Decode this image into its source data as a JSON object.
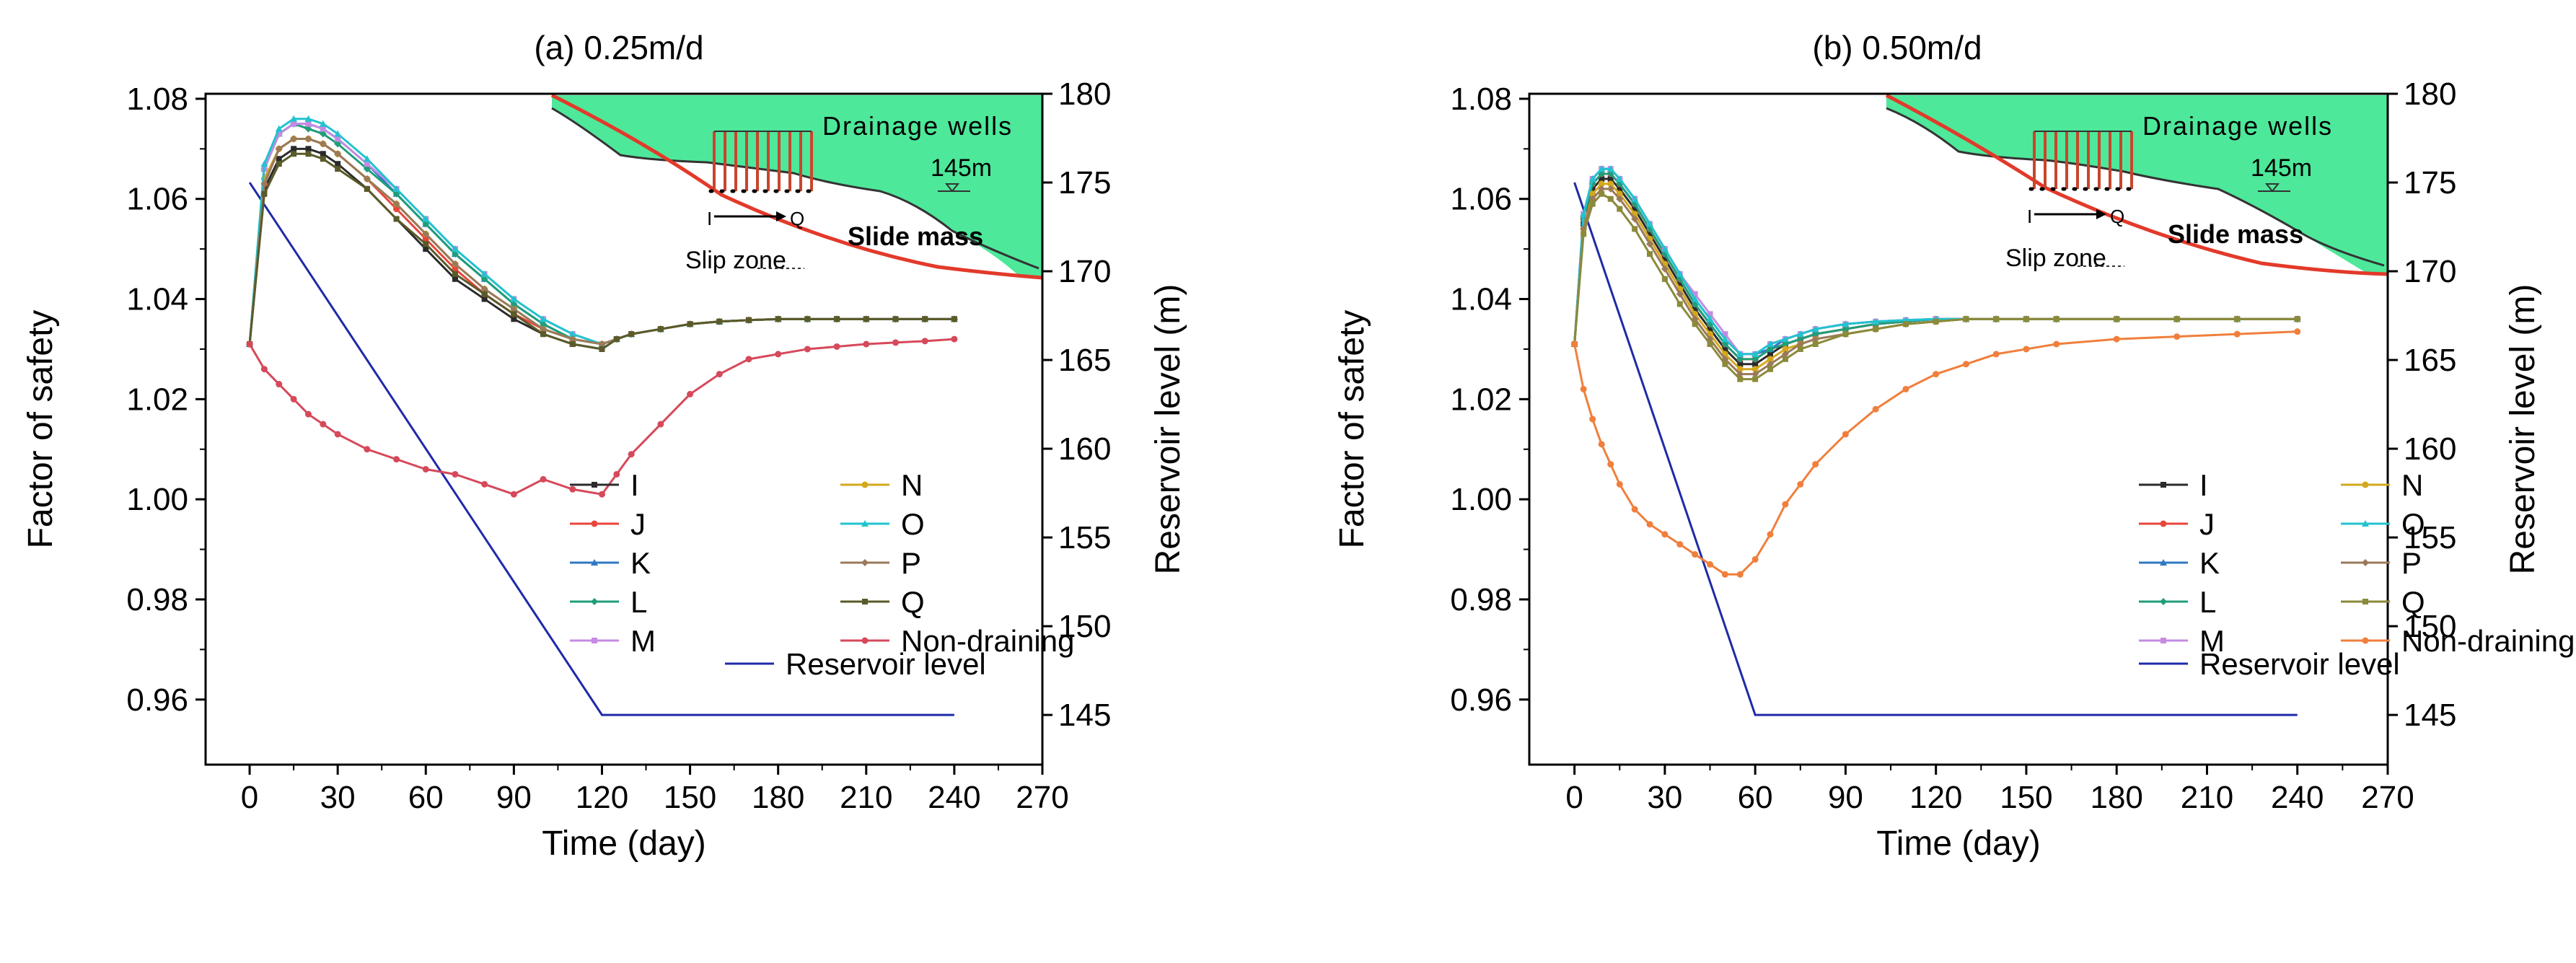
{
  "chart_data": [
    {
      "type": "line",
      "title": "(a) 0.25m/d",
      "xlabel": "Time (day)",
      "ylabel": "Factor of safety",
      "y2label": "Reservoir level (m)",
      "xlim": [
        -15,
        270
      ],
      "ylim": [
        0.947,
        1.081
      ],
      "y2lim": [
        142.2,
        180
      ],
      "xticks": [
        0,
        30,
        60,
        90,
        120,
        150,
        180,
        210,
        240,
        270
      ],
      "yticks": [
        0.96,
        0.98,
        1.0,
        1.02,
        1.04,
        1.06,
        1.08
      ],
      "y2ticks": [
        145,
        150,
        155,
        160,
        165,
        170,
        175,
        180
      ],
      "x": [
        0,
        5,
        10,
        15,
        20,
        25,
        30,
        40,
        50,
        60,
        70,
        80,
        90,
        100,
        110,
        120,
        125,
        130,
        140,
        150,
        160,
        170,
        180,
        190,
        200,
        210,
        220,
        230,
        240
      ],
      "series": [
        {
          "name": "I",
          "color": "#2b2b2b",
          "values": [
            1.031,
            1.062,
            1.068,
            1.07,
            1.07,
            1.069,
            1.067,
            1.062,
            1.056,
            1.05,
            1.044,
            1.04,
            1.036,
            1.033,
            1.031,
            1.03,
            1.032,
            1.033,
            1.034,
            1.035,
            1.0355,
            1.0358,
            1.036,
            1.036,
            1.036,
            1.036,
            1.036,
            1.036,
            1.036
          ]
        },
        {
          "name": "J",
          "color": "#e8453c",
          "values": [
            1.031,
            1.063,
            1.07,
            1.072,
            1.072,
            1.071,
            1.069,
            1.064,
            1.058,
            1.052,
            1.046,
            1.041,
            1.037,
            1.034,
            1.032,
            1.031,
            1.032,
            1.033,
            1.034,
            1.035,
            1.0355,
            1.0358,
            1.036,
            1.036,
            1.036,
            1.036,
            1.036,
            1.036,
            1.036
          ]
        },
        {
          "name": "K",
          "color": "#2f78c4",
          "values": [
            1.031,
            1.066,
            1.073,
            1.075,
            1.075,
            1.074,
            1.072,
            1.067,
            1.061,
            1.055,
            1.049,
            1.044,
            1.039,
            1.035,
            1.032,
            1.031,
            1.032,
            1.033,
            1.034,
            1.035,
            1.0355,
            1.0358,
            1.036,
            1.036,
            1.036,
            1.036,
            1.036,
            1.036,
            1.036
          ]
        },
        {
          "name": "L",
          "color": "#1f9e7a",
          "values": [
            1.031,
            1.066,
            1.073,
            1.075,
            1.074,
            1.073,
            1.071,
            1.066,
            1.061,
            1.055,
            1.049,
            1.044,
            1.039,
            1.035,
            1.032,
            1.031,
            1.032,
            1.033,
            1.034,
            1.035,
            1.0355,
            1.0358,
            1.036,
            1.036,
            1.036,
            1.036,
            1.036,
            1.036,
            1.036
          ]
        },
        {
          "name": "M",
          "color": "#c58be3",
          "values": [
            1.031,
            1.066,
            1.073,
            1.075,
            1.075,
            1.074,
            1.072,
            1.067,
            1.062,
            1.056,
            1.05,
            1.045,
            1.04,
            1.036,
            1.033,
            1.031,
            1.032,
            1.033,
            1.034,
            1.035,
            1.0355,
            1.0358,
            1.036,
            1.036,
            1.036,
            1.036,
            1.036,
            1.036,
            1.036
          ]
        },
        {
          "name": "N",
          "color": "#d4a81c",
          "values": [
            1.031,
            1.064,
            1.07,
            1.072,
            1.072,
            1.071,
            1.069,
            1.064,
            1.059,
            1.053,
            1.047,
            1.042,
            1.038,
            1.034,
            1.032,
            1.031,
            1.032,
            1.033,
            1.034,
            1.035,
            1.0355,
            1.0358,
            1.036,
            1.036,
            1.036,
            1.036,
            1.036,
            1.036,
            1.036
          ]
        },
        {
          "name": "O",
          "color": "#22c3cf",
          "values": [
            1.031,
            1.067,
            1.074,
            1.076,
            1.076,
            1.075,
            1.073,
            1.068,
            1.062,
            1.056,
            1.05,
            1.045,
            1.04,
            1.036,
            1.033,
            1.031,
            1.032,
            1.033,
            1.034,
            1.035,
            1.0355,
            1.0358,
            1.036,
            1.036,
            1.036,
            1.036,
            1.036,
            1.036,
            1.036
          ]
        },
        {
          "name": "P",
          "color": "#9a7a5a",
          "values": [
            1.031,
            1.063,
            1.07,
            1.072,
            1.072,
            1.071,
            1.069,
            1.064,
            1.059,
            1.053,
            1.047,
            1.042,
            1.038,
            1.034,
            1.032,
            1.031,
            1.032,
            1.033,
            1.034,
            1.035,
            1.0355,
            1.0358,
            1.036,
            1.036,
            1.036,
            1.036,
            1.036,
            1.036,
            1.036
          ]
        },
        {
          "name": "Q",
          "color": "#5a5a2a",
          "values": [
            1.031,
            1.061,
            1.067,
            1.069,
            1.069,
            1.068,
            1.066,
            1.062,
            1.056,
            1.051,
            1.045,
            1.041,
            1.037,
            1.033,
            1.031,
            1.03,
            1.032,
            1.033,
            1.034,
            1.035,
            1.0355,
            1.0358,
            1.036,
            1.036,
            1.036,
            1.036,
            1.036,
            1.036,
            1.036
          ]
        },
        {
          "name": "Non-draining",
          "color": "#d6495b",
          "values": [
            1.031,
            1.026,
            1.023,
            1.02,
            1.017,
            1.015,
            1.013,
            1.01,
            1.008,
            1.006,
            1.005,
            1.003,
            1.001,
            1.004,
            1.002,
            1.001,
            1.005,
            1.009,
            1.015,
            1.021,
            1.025,
            1.028,
            1.029,
            1.03,
            1.0305,
            1.031,
            1.0313,
            1.0316,
            1.032
          ]
        }
      ],
      "reservoir": {
        "name": "Reservoir level",
        "color": "#1f2aa8",
        "x": [
          0,
          120,
          240
        ],
        "values": [
          175,
          145,
          145
        ]
      },
      "legend": [
        "I",
        "J",
        "K",
        "L",
        "M",
        "N",
        "O",
        "P",
        "Q",
        "Non-draining",
        "Reservoir level"
      ],
      "inset": {
        "wells_label": "Drainage wells",
        "level_label": "145m",
        "slide_label": "Slide mass",
        "slip_label": "Slip zone",
        "start_marker": "I",
        "end_marker": "Q"
      }
    },
    {
      "type": "line",
      "title": "(b) 0.50m/d",
      "xlabel": "Time (day)",
      "ylabel": "Factor of safety",
      "y2label": "Reservoir level (m)",
      "xlim": [
        -15,
        270
      ],
      "ylim": [
        0.947,
        1.081
      ],
      "y2lim": [
        142.2,
        180
      ],
      "xticks": [
        0,
        30,
        60,
        90,
        120,
        150,
        180,
        210,
        240,
        270
      ],
      "yticks": [
        0.96,
        0.98,
        1.0,
        1.02,
        1.04,
        1.06,
        1.08
      ],
      "y2ticks": [
        145,
        150,
        155,
        160,
        165,
        170,
        175,
        180
      ],
      "x": [
        0,
        3,
        6,
        9,
        12,
        15,
        20,
        25,
        30,
        35,
        40,
        45,
        50,
        55,
        60,
        65,
        70,
        75,
        80,
        90,
        100,
        110,
        120,
        130,
        140,
        150,
        160,
        180,
        200,
        220,
        240
      ],
      "series": [
        {
          "name": "I",
          "color": "#2b2b2b",
          "values": [
            1.031,
            1.055,
            1.062,
            1.064,
            1.064,
            1.062,
            1.058,
            1.053,
            1.048,
            1.043,
            1.038,
            1.034,
            1.03,
            1.027,
            1.027,
            1.029,
            1.031,
            1.032,
            1.033,
            1.034,
            1.035,
            1.0355,
            1.036,
            1.036,
            1.036,
            1.036,
            1.036,
            1.036,
            1.036,
            1.036,
            1.036
          ]
        },
        {
          "name": "J",
          "color": "#e8453c",
          "values": [
            1.031,
            1.056,
            1.063,
            1.065,
            1.065,
            1.063,
            1.059,
            1.054,
            1.049,
            1.044,
            1.039,
            1.035,
            1.031,
            1.028,
            1.028,
            1.03,
            1.031,
            1.032,
            1.033,
            1.034,
            1.035,
            1.0355,
            1.036,
            1.036,
            1.036,
            1.036,
            1.036,
            1.036,
            1.036,
            1.036,
            1.036
          ]
        },
        {
          "name": "K",
          "color": "#2f78c4",
          "values": [
            1.031,
            1.057,
            1.064,
            1.066,
            1.066,
            1.064,
            1.06,
            1.055,
            1.05,
            1.045,
            1.04,
            1.036,
            1.032,
            1.029,
            1.029,
            1.03,
            1.032,
            1.033,
            1.034,
            1.035,
            1.0355,
            1.0358,
            1.036,
            1.036,
            1.036,
            1.036,
            1.036,
            1.036,
            1.036,
            1.036,
            1.036
          ]
        },
        {
          "name": "L",
          "color": "#1f9e7a",
          "values": [
            1.031,
            1.056,
            1.063,
            1.065,
            1.065,
            1.063,
            1.059,
            1.054,
            1.049,
            1.044,
            1.039,
            1.035,
            1.031,
            1.028,
            1.028,
            1.03,
            1.031,
            1.032,
            1.033,
            1.034,
            1.035,
            1.0355,
            1.036,
            1.036,
            1.036,
            1.036,
            1.036,
            1.036,
            1.036,
            1.036,
            1.036
          ]
        },
        {
          "name": "M",
          "color": "#c58be3",
          "values": [
            1.031,
            1.057,
            1.064,
            1.066,
            1.066,
            1.064,
            1.06,
            1.055,
            1.05,
            1.045,
            1.041,
            1.037,
            1.033,
            1.029,
            1.029,
            1.031,
            1.032,
            1.033,
            1.034,
            1.035,
            1.0355,
            1.0358,
            1.036,
            1.036,
            1.036,
            1.036,
            1.036,
            1.036,
            1.036,
            1.036,
            1.036
          ]
        },
        {
          "name": "N",
          "color": "#d4a81c",
          "values": [
            1.031,
            1.054,
            1.061,
            1.063,
            1.063,
            1.061,
            1.057,
            1.052,
            1.047,
            1.042,
            1.037,
            1.033,
            1.029,
            1.026,
            1.026,
            1.028,
            1.03,
            1.031,
            1.032,
            1.033,
            1.034,
            1.035,
            1.0355,
            1.036,
            1.036,
            1.036,
            1.036,
            1.036,
            1.036,
            1.036,
            1.036
          ]
        },
        {
          "name": "O",
          "color": "#22c3cf",
          "values": [
            1.031,
            1.057,
            1.064,
            1.066,
            1.066,
            1.064,
            1.06,
            1.055,
            1.05,
            1.045,
            1.04,
            1.036,
            1.032,
            1.029,
            1.029,
            1.031,
            1.032,
            1.033,
            1.034,
            1.035,
            1.0355,
            1.0358,
            1.036,
            1.036,
            1.036,
            1.036,
            1.036,
            1.036,
            1.036,
            1.036,
            1.036
          ]
        },
        {
          "name": "P",
          "color": "#9a7a5a",
          "values": [
            1.031,
            1.054,
            1.06,
            1.062,
            1.062,
            1.06,
            1.056,
            1.051,
            1.046,
            1.041,
            1.036,
            1.032,
            1.028,
            1.025,
            1.025,
            1.027,
            1.029,
            1.031,
            1.032,
            1.033,
            1.034,
            1.035,
            1.0355,
            1.036,
            1.036,
            1.036,
            1.036,
            1.036,
            1.036,
            1.036,
            1.036
          ]
        },
        {
          "name": "Q",
          "color": "#8a8a3a",
          "values": [
            1.031,
            1.053,
            1.059,
            1.061,
            1.06,
            1.058,
            1.054,
            1.049,
            1.044,
            1.039,
            1.035,
            1.031,
            1.027,
            1.024,
            1.024,
            1.026,
            1.028,
            1.03,
            1.031,
            1.033,
            1.034,
            1.035,
            1.0355,
            1.036,
            1.036,
            1.036,
            1.036,
            1.036,
            1.036,
            1.036,
            1.036
          ]
        },
        {
          "name": "Non-draining",
          "color": "#f07f3c",
          "values": [
            1.031,
            1.022,
            1.016,
            1.011,
            1.007,
            1.003,
            0.998,
            0.995,
            0.993,
            0.991,
            0.989,
            0.987,
            0.985,
            0.985,
            0.988,
            0.993,
            0.999,
            1.003,
            1.007,
            1.013,
            1.018,
            1.022,
            1.025,
            1.027,
            1.029,
            1.03,
            1.031,
            1.032,
            1.0325,
            1.033,
            1.0335
          ]
        }
      ],
      "reservoir": {
        "name": "Reservoir level",
        "color": "#1f2aa8",
        "x": [
          0,
          60,
          240
        ],
        "values": [
          175,
          145,
          145
        ]
      },
      "legend": [
        "I",
        "J",
        "K",
        "L",
        "M",
        "N",
        "O",
        "P",
        "Q",
        "Non-draining",
        "Reservoir level"
      ],
      "inset": {
        "wells_label": "Drainage wells",
        "level_label": "145m",
        "slide_label": "Slide mass",
        "slip_label": "Slip zone",
        "start_marker": "I",
        "end_marker": "Q"
      }
    }
  ]
}
